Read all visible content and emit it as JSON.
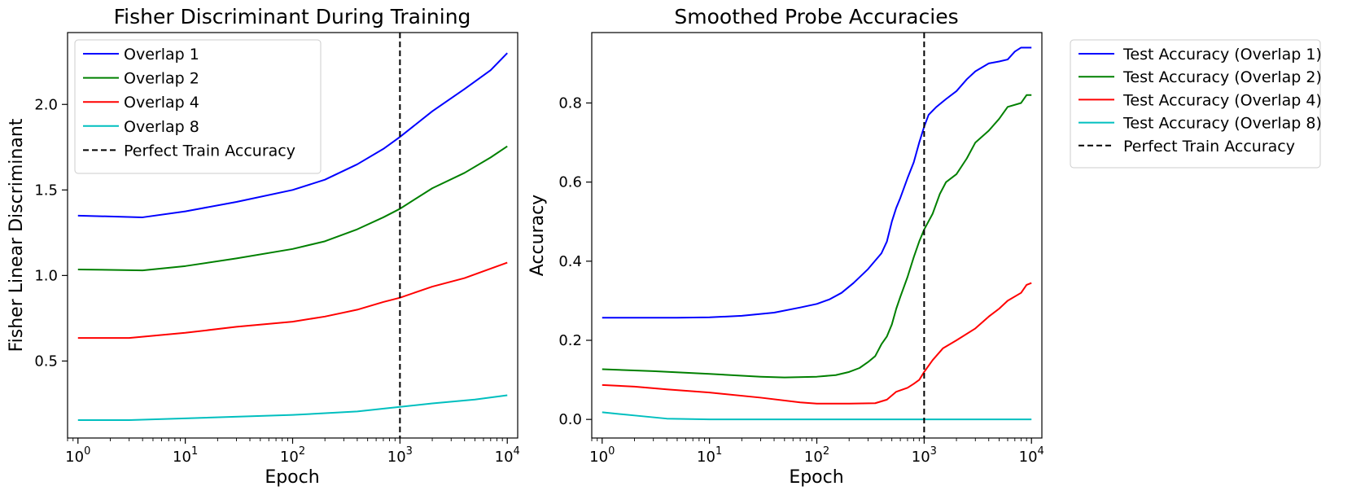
{
  "chart_data": [
    {
      "type": "line",
      "title": "Fisher Discriminant During Training",
      "xlabel": "Epoch",
      "ylabel": "Fisher Linear Discriminant",
      "xscale": "log",
      "xlim": [
        0.8,
        12500
      ],
      "ylim": [
        0.05,
        2.42
      ],
      "xticks": [
        1,
        10,
        100,
        1000,
        10000
      ],
      "xtick_exponents": [
        "0",
        "1",
        "2",
        "3",
        "4"
      ],
      "yticks": [
        0.5,
        1.0,
        1.5,
        2.0
      ],
      "ytick_labels": [
        "0.5",
        "1.0",
        "1.5",
        "2.0"
      ],
      "legend_position": "upper-left",
      "vline": {
        "x": 1000,
        "name": "Perfect Train Accuracy",
        "color": "#000000",
        "style": "dashed"
      },
      "series": [
        {
          "name": "Overlap 1",
          "color": "#0000ff",
          "points": [
            [
              1,
              1.35
            ],
            [
              2,
              1.345
            ],
            [
              4,
              1.34
            ],
            [
              10,
              1.375
            ],
            [
              30,
              1.43
            ],
            [
              100,
              1.5
            ],
            [
              200,
              1.56
            ],
            [
              400,
              1.65
            ],
            [
              700,
              1.74
            ],
            [
              1000,
              1.81
            ],
            [
              2000,
              1.96
            ],
            [
              4000,
              2.09
            ],
            [
              7000,
              2.2
            ],
            [
              10000,
              2.3
            ]
          ]
        },
        {
          "name": "Overlap 2",
          "color": "#008000",
          "points": [
            [
              1,
              1.035
            ],
            [
              2,
              1.033
            ],
            [
              4,
              1.03
            ],
            [
              10,
              1.055
            ],
            [
              30,
              1.1
            ],
            [
              100,
              1.155
            ],
            [
              200,
              1.2
            ],
            [
              400,
              1.27
            ],
            [
              700,
              1.34
            ],
            [
              1000,
              1.39
            ],
            [
              2000,
              1.51
            ],
            [
              4000,
              1.6
            ],
            [
              7000,
              1.69
            ],
            [
              10000,
              1.755
            ]
          ]
        },
        {
          "name": "Overlap 4",
          "color": "#ff0000",
          "points": [
            [
              1,
              0.635
            ],
            [
              2,
              0.635
            ],
            [
              3,
              0.635
            ],
            [
              10,
              0.665
            ],
            [
              30,
              0.7
            ],
            [
              100,
              0.73
            ],
            [
              200,
              0.76
            ],
            [
              400,
              0.8
            ],
            [
              700,
              0.845
            ],
            [
              1000,
              0.87
            ],
            [
              2000,
              0.935
            ],
            [
              4000,
              0.985
            ],
            [
              7000,
              1.04
            ],
            [
              10000,
              1.075
            ]
          ]
        },
        {
          "name": "Overlap 8",
          "color": "#00bfbf",
          "points": [
            [
              1,
              0.155
            ],
            [
              3,
              0.155
            ],
            [
              10,
              0.165
            ],
            [
              100,
              0.185
            ],
            [
              400,
              0.205
            ],
            [
              1000,
              0.232
            ],
            [
              2000,
              0.252
            ],
            [
              5000,
              0.275
            ],
            [
              10000,
              0.3
            ]
          ]
        }
      ]
    },
    {
      "type": "line",
      "title": "Smoothed Probe Accuracies",
      "xlabel": "Epoch",
      "ylabel": "Accuracy",
      "xscale": "log",
      "xlim": [
        0.8,
        12500
      ],
      "ylim": [
        -0.047,
        0.978
      ],
      "xticks": [
        1,
        10,
        100,
        1000,
        10000
      ],
      "xtick_exponents": [
        "0",
        "1",
        "2",
        "3",
        "4"
      ],
      "yticks": [
        0.0,
        0.2,
        0.4,
        0.6,
        0.8
      ],
      "ytick_labels": [
        "0.0",
        "0.2",
        "0.4",
        "0.6",
        "0.8"
      ],
      "legend_position": "outside-upper-right",
      "vline": {
        "x": 1000,
        "name": "Perfect Train Accuracy",
        "color": "#000000",
        "style": "dashed"
      },
      "series": [
        {
          "name": "Test Accuracy (Overlap 1)",
          "color": "#0000ff",
          "points": [
            [
              1,
              0.257
            ],
            [
              5,
              0.257
            ],
            [
              10,
              0.258
            ],
            [
              20,
              0.262
            ],
            [
              40,
              0.27
            ],
            [
              70,
              0.283
            ],
            [
              100,
              0.292
            ],
            [
              130,
              0.303
            ],
            [
              170,
              0.32
            ],
            [
              220,
              0.345
            ],
            [
              300,
              0.38
            ],
            [
              400,
              0.42
            ],
            [
              450,
              0.45
            ],
            [
              500,
              0.5
            ],
            [
              550,
              0.535
            ],
            [
              600,
              0.56
            ],
            [
              700,
              0.61
            ],
            [
              800,
              0.65
            ],
            [
              900,
              0.7
            ],
            [
              1000,
              0.74
            ],
            [
              1100,
              0.77
            ],
            [
              1300,
              0.79
            ],
            [
              1600,
              0.81
            ],
            [
              2000,
              0.83
            ],
            [
              2500,
              0.86
            ],
            [
              3000,
              0.88
            ],
            [
              4000,
              0.9
            ],
            [
              5000,
              0.905
            ],
            [
              6000,
              0.91
            ],
            [
              7000,
              0.93
            ],
            [
              8000,
              0.94
            ],
            [
              10000,
              0.94
            ]
          ]
        },
        {
          "name": "Test Accuracy (Overlap 2)",
          "color": "#008000",
          "points": [
            [
              1,
              0.127
            ],
            [
              3,
              0.122
            ],
            [
              10,
              0.115
            ],
            [
              30,
              0.108
            ],
            [
              50,
              0.106
            ],
            [
              100,
              0.108
            ],
            [
              150,
              0.112
            ],
            [
              200,
              0.12
            ],
            [
              250,
              0.13
            ],
            [
              300,
              0.145
            ],
            [
              350,
              0.16
            ],
            [
              400,
              0.19
            ],
            [
              450,
              0.21
            ],
            [
              500,
              0.24
            ],
            [
              550,
              0.28
            ],
            [
              600,
              0.31
            ],
            [
              700,
              0.36
            ],
            [
              800,
              0.41
            ],
            [
              900,
              0.45
            ],
            [
              1000,
              0.48
            ],
            [
              1200,
              0.52
            ],
            [
              1400,
              0.57
            ],
            [
              1600,
              0.6
            ],
            [
              2000,
              0.62
            ],
            [
              2500,
              0.66
            ],
            [
              3000,
              0.7
            ],
            [
              4000,
              0.73
            ],
            [
              5000,
              0.76
            ],
            [
              6000,
              0.79
            ],
            [
              8000,
              0.8
            ],
            [
              9000,
              0.82
            ],
            [
              10000,
              0.82
            ]
          ]
        },
        {
          "name": "Test Accuracy (Overlap 4)",
          "color": "#ff0000",
          "points": [
            [
              1,
              0.087
            ],
            [
              2,
              0.083
            ],
            [
              4,
              0.076
            ],
            [
              10,
              0.068
            ],
            [
              30,
              0.055
            ],
            [
              70,
              0.043
            ],
            [
              100,
              0.04
            ],
            [
              200,
              0.04
            ],
            [
              350,
              0.041
            ],
            [
              450,
              0.05
            ],
            [
              550,
              0.07
            ],
            [
              700,
              0.08
            ],
            [
              800,
              0.09
            ],
            [
              900,
              0.1
            ],
            [
              1000,
              0.12
            ],
            [
              1200,
              0.15
            ],
            [
              1500,
              0.18
            ],
            [
              2000,
              0.2
            ],
            [
              3000,
              0.23
            ],
            [
              4000,
              0.26
            ],
            [
              5000,
              0.28
            ],
            [
              6000,
              0.3
            ],
            [
              8000,
              0.32
            ],
            [
              9000,
              0.34
            ],
            [
              10000,
              0.345
            ]
          ]
        },
        {
          "name": "Test Accuracy (Overlap 8)",
          "color": "#00bfbf",
          "points": [
            [
              1,
              0.018
            ],
            [
              2,
              0.01
            ],
            [
              4,
              0.002
            ],
            [
              10,
              0.0
            ],
            [
              100,
              0.0
            ],
            [
              1000,
              0.0
            ],
            [
              10000,
              0.0
            ]
          ]
        }
      ]
    }
  ]
}
